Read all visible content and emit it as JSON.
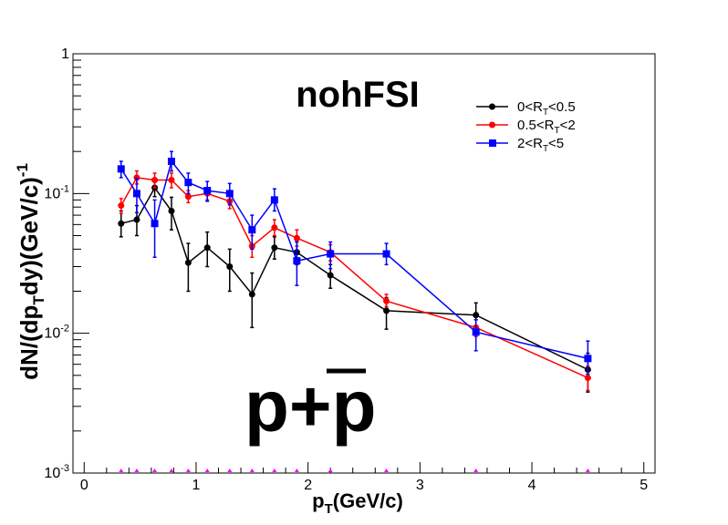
{
  "chart_data": {
    "type": "line",
    "title": "nohFSI",
    "label": "p+",
    "label_bar": "p",
    "xlabel": "(GeV/c)",
    "xlabel_p": "p",
    "xlabel_sub": "T",
    "ylabel": "dN/(dp",
    "ylabel_sub": "T",
    "ylabel_rest": "dy)(GeV/c)",
    "ylabel_sup": "-1",
    "xlim": [
      -0.1,
      5.1
    ],
    "ylim": [
      0.001,
      1
    ],
    "yscale": "log",
    "grid": false,
    "legend_position": "top-right",
    "x_ticks": [
      "0",
      "1",
      "2",
      "3",
      "4",
      "5"
    ],
    "y_ticks": [
      {
        "base": "10",
        "exp": "-3"
      },
      {
        "base": "10",
        "exp": "-2"
      },
      {
        "base": "10",
        "exp": "-1"
      },
      {
        "base": "1",
        "exp": ""
      }
    ],
    "series": [
      {
        "name_parts": [
          "0<R",
          "T",
          "<0.5"
        ],
        "color": "#000000",
        "marker": "circle",
        "x": [
          0.33,
          0.47,
          0.63,
          0.78,
          0.93,
          1.1,
          1.3,
          1.5,
          1.7,
          1.9,
          2.2,
          2.7,
          3.5,
          4.5
        ],
        "y": [
          0.061,
          0.065,
          0.11,
          0.075,
          0.032,
          0.041,
          0.03,
          0.019,
          0.041,
          0.038,
          0.026,
          0.0145,
          0.0135,
          0.0055
        ],
        "err_low": [
          0.049,
          0.05,
          0.095,
          0.055,
          0.02,
          0.03,
          0.02,
          0.011,
          0.034,
          0.031,
          0.021,
          0.0107,
          0.011,
          0.0038
        ],
        "err_high": [
          0.075,
          0.082,
          0.128,
          0.094,
          0.044,
          0.053,
          0.04,
          0.027,
          0.049,
          0.046,
          0.031,
          0.018,
          0.0165,
          0.0072
        ]
      },
      {
        "name_parts": [
          "0.5<R",
          "T",
          "<2"
        ],
        "color": "#ff0000",
        "marker": "circle",
        "x": [
          0.33,
          0.47,
          0.63,
          0.78,
          0.93,
          1.1,
          1.3,
          1.5,
          1.7,
          1.9,
          2.2,
          2.7,
          3.5,
          4.5
        ],
        "y": [
          0.082,
          0.13,
          0.125,
          0.125,
          0.095,
          0.1,
          0.088,
          0.042,
          0.057,
          0.048,
          0.038,
          0.017,
          0.011,
          0.0048
        ],
        "err_low": [
          0.072,
          0.117,
          0.11,
          0.11,
          0.086,
          0.09,
          0.078,
          0.035,
          0.05,
          0.042,
          0.033,
          0.0155,
          0.0095,
          0.0039
        ],
        "err_high": [
          0.092,
          0.145,
          0.14,
          0.14,
          0.105,
          0.11,
          0.098,
          0.05,
          0.065,
          0.055,
          0.043,
          0.019,
          0.0125,
          0.0058
        ]
      },
      {
        "name_parts": [
          "2<R",
          "T",
          "<5"
        ],
        "color": "#0000ff",
        "marker": "square",
        "x": [
          0.33,
          0.47,
          0.63,
          0.78,
          0.93,
          1.1,
          1.3,
          1.5,
          1.7,
          1.9,
          2.2,
          2.7,
          3.5,
          4.5
        ],
        "y": [
          0.15,
          0.1,
          0.061,
          0.17,
          0.12,
          0.105,
          0.1,
          0.055,
          0.09,
          0.033,
          0.037,
          0.037,
          0.0102,
          0.0066
        ],
        "err_low": [
          0.13,
          0.073,
          0.035,
          0.145,
          0.1,
          0.088,
          0.083,
          0.04,
          0.075,
          0.022,
          0.029,
          0.031,
          0.0075,
          0.0051
        ],
        "err_high": [
          0.17,
          0.128,
          0.09,
          0.2,
          0.14,
          0.122,
          0.118,
          0.07,
          0.108,
          0.045,
          0.045,
          0.044,
          0.0125,
          0.0088
        ]
      }
    ],
    "baseline_markers": {
      "color": "#ff00ff",
      "x": [
        0.33,
        0.47,
        0.63,
        0.78,
        0.93,
        1.1,
        1.3,
        1.5,
        1.7,
        1.9,
        2.2,
        2.7,
        3.5,
        4.5
      ]
    }
  }
}
